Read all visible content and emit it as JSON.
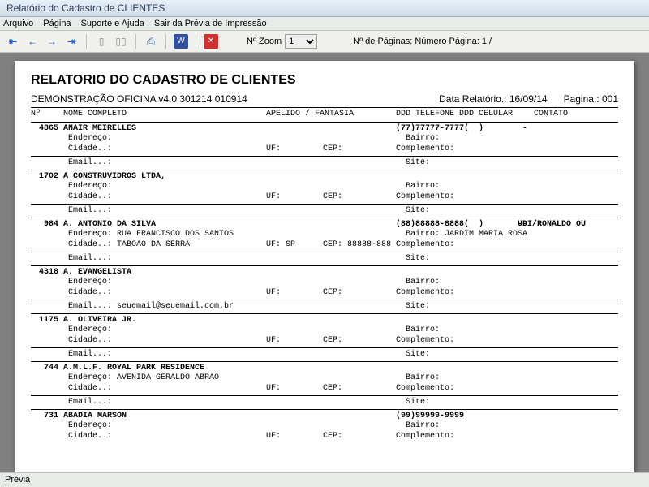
{
  "window": {
    "title": "Relatório do Cadastro de CLIENTES"
  },
  "menu": {
    "arquivo": "Arquivo",
    "pagina": "Página",
    "suporte": "Suporte e Ajuda",
    "sair": "Sair da Prévia de Impressão"
  },
  "toolbar": {
    "zoom_label": "Nº Zoom",
    "zoom_value": "1",
    "page_label": "Nº de Páginas: Número Página: 1 /"
  },
  "report": {
    "title": "RELATORIO DO CADASTRO DE CLIENTES",
    "demo": "DEMONSTRAÇÃO OFICINA v4.0 301214 010914",
    "date_label": "Data Relatório.:",
    "date_value": "16/09/14",
    "page_label": "Pagina.:",
    "page_value": "001",
    "headers": {
      "num": "Nº",
      "nome": "NOME COMPLETO",
      "apelido": "APELIDO / FANTASIA",
      "ddd_tel": "DDD TELEFONE DDD CELULAR",
      "contato": "CONTATO"
    },
    "labels": {
      "endereco": "Endereço:",
      "cidade": "Cidade..:",
      "uf": "UF:",
      "cep": "CEP:",
      "bairro": "Bairro:",
      "complemento": "Complemento:",
      "email": "Email...:",
      "site": "Site:"
    }
  },
  "records": [
    {
      "num": "4865",
      "nome": "ANAIR MEIRELLES",
      "tel": "(77)77777-7777(  )        -",
      "contato": "",
      "endereco": "",
      "bairro": "",
      "cidade": "",
      "uf": "",
      "cep": "",
      "email": "",
      "site": ""
    },
    {
      "num": "1702",
      "nome": "A CONSTRUVIDROS LTDA,",
      "tel": "",
      "contato": "",
      "endereco": "",
      "bairro": "",
      "cidade": "",
      "uf": "",
      "cep": "",
      "email": "",
      "site": ""
    },
    {
      "num": "984",
      "nome": "A. ANTONIO DA SILVA",
      "tel": "(88)88888-8888(  )       --",
      "contato": "UDI/RONALDO OU",
      "endereco": "RUA FRANCISCO DOS SANTOS",
      "bairro": "JARDIM MARIA ROSA",
      "cidade": "TABOAO DA SERRA",
      "uf": "SP",
      "cep": "88888-888",
      "email": "",
      "site": ""
    },
    {
      "num": "4318",
      "nome": "A. EVANGELISTA",
      "tel": "",
      "contato": "",
      "endereco": "",
      "bairro": "",
      "cidade": "",
      "uf": "",
      "cep": "",
      "email": "seuemail@seuemail.com.br",
      "site": ""
    },
    {
      "num": "1175",
      "nome": "A. OLIVEIRA JR.",
      "tel": "",
      "contato": "",
      "endereco": "",
      "bairro": "",
      "cidade": "",
      "uf": "",
      "cep": "",
      "email": "",
      "site": ""
    },
    {
      "num": "744",
      "nome": "A.M.L.F. ROYAL PARK RESIDENCE",
      "tel": "",
      "contato": "",
      "endereco": "AVENIDA GERALDO ABRAO",
      "bairro": "",
      "cidade": "",
      "uf": "",
      "cep": "",
      "email": "",
      "site": ""
    },
    {
      "num": "731",
      "nome": "ABADIA MARSON",
      "tel": "(99)99999-9999",
      "contato": "",
      "endereco": "",
      "bairro": "",
      "cidade": "",
      "uf": "",
      "cep": "",
      "email": "",
      "site": ""
    }
  ],
  "status": {
    "text": "Prévia"
  }
}
